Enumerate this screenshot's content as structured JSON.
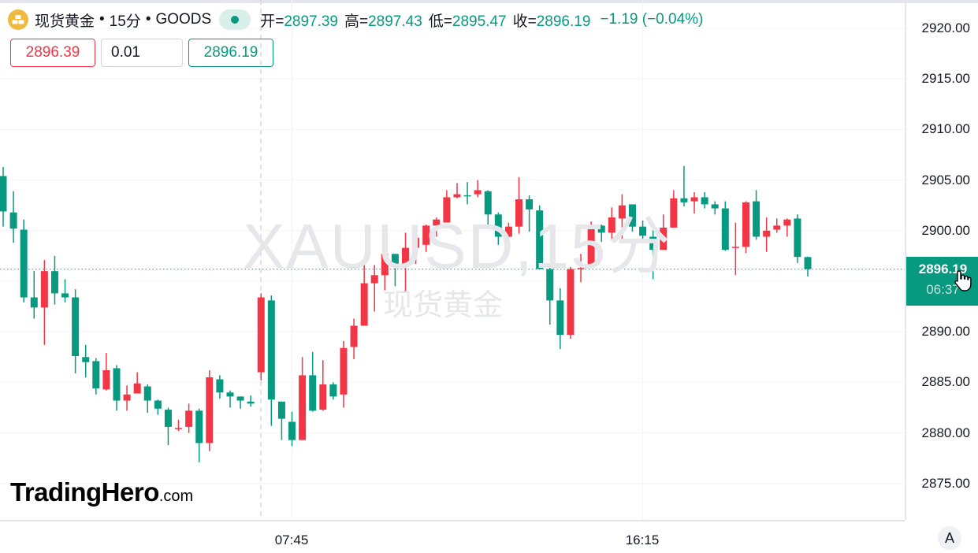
{
  "header": {
    "symbol_name": "现货黄金",
    "separator": "•",
    "interval": "15分",
    "exchange": "GOODS",
    "open_label": "开=",
    "open": "2897.39",
    "high_label": "高=",
    "high": "2897.43",
    "low_label": "低=",
    "low": "2895.47",
    "close_label": "收=",
    "close": "2896.19",
    "change": "−1.19 (−0.04%)",
    "status": "market-open-dot"
  },
  "order_panel": {
    "sell_price": "2896.39",
    "quantity": "0.01",
    "buy_price": "2896.19"
  },
  "watermark": {
    "symbol": "XAUUSD,15分",
    "name": "现货黄金"
  },
  "logo": {
    "brand": "TradingHero",
    "suffix": ".com"
  },
  "price_axis": {
    "current_price": "2896.19",
    "countdown": "06:37",
    "auto_scale": "A"
  },
  "time_axis": {
    "labels": [
      "07:45",
      "16:15"
    ]
  },
  "colors": {
    "up": "#f23645",
    "down": "#089981"
  },
  "icons": {
    "symbol": "gold-bars-icon",
    "cursor": "pointer-hand-icon"
  },
  "chart_data": {
    "type": "candlestick",
    "title": "现货黄金 • 15分 • GOODS",
    "interval_minutes": 15,
    "ylim": [
      2873,
      2922
    ],
    "yticks": [
      2875,
      2880,
      2885,
      2890,
      2895,
      2900,
      2905,
      2910,
      2915,
      2920
    ],
    "ytick_labels": [
      "2875.00",
      "2880.00",
      "2885.00",
      "2890.00",
      "2895.00",
      "2900.00",
      "2905.00",
      "2910.00",
      "2915.00",
      "2920.00"
    ],
    "xtick_labels": [
      {
        "candle_index": 28,
        "label": "07:45"
      },
      {
        "candle_index": 62,
        "label": "16:15"
      }
    ],
    "grid": true,
    "last_price_line": 2896.19,
    "ohlc": [
      [
        2905.4,
        2906.3,
        2900.4,
        2901.9
      ],
      [
        2901.8,
        2903.9,
        2898.8,
        2900.2
      ],
      [
        2900.1,
        2901.1,
        2892.9,
        2893.4
      ],
      [
        2893.4,
        2896.0,
        2891.3,
        2892.4
      ],
      [
        2892.4,
        2897.1,
        2888.7,
        2896.0
      ],
      [
        2896.0,
        2897.5,
        2892.7,
        2893.8
      ],
      [
        2893.8,
        2895.2,
        2892.9,
        2893.4
      ],
      [
        2893.4,
        2894.2,
        2885.9,
        2887.6
      ],
      [
        2887.5,
        2888.7,
        2885.5,
        2887.0
      ],
      [
        2887.1,
        2887.4,
        2883.8,
        2884.4
      ],
      [
        2884.3,
        2887.9,
        2884.2,
        2886.2
      ],
      [
        2886.4,
        2886.7,
        2882.2,
        2883.2
      ],
      [
        2883.2,
        2884.7,
        2882.2,
        2883.8
      ],
      [
        2883.9,
        2886.0,
        2883.9,
        2884.9
      ],
      [
        2884.6,
        2884.8,
        2882.0,
        2883.2
      ],
      [
        2883.2,
        2883.3,
        2881.8,
        2882.4
      ],
      [
        2882.3,
        2882.5,
        2878.8,
        2880.6
      ],
      [
        2880.4,
        2881.3,
        2880.2,
        2880.5
      ],
      [
        2880.6,
        2882.9,
        2880.0,
        2882.2
      ],
      [
        2882.2,
        2882.4,
        2877.1,
        2879.0
      ],
      [
        2879.0,
        2886.2,
        2878.2,
        2885.5
      ],
      [
        2885.3,
        2885.7,
        2883.4,
        2884.0
      ],
      [
        2884.0,
        2884.2,
        2882.5,
        2883.6
      ],
      [
        2883.6,
        2883.6,
        2882.4,
        2883.2
      ],
      [
        2883.1,
        2883.7,
        2882.6,
        2882.9
      ],
      [
        2886.0,
        2893.8,
        2885.2,
        2893.4
      ],
      [
        2893.1,
        2893.6,
        2880.7,
        2883.3
      ],
      [
        2883.1,
        2883.1,
        2879.3,
        2881.4
      ],
      [
        2881.1,
        2882.1,
        2878.7,
        2879.3
      ],
      [
        2879.3,
        2887.5,
        2879.3,
        2885.7
      ],
      [
        2885.7,
        2888.0,
        2882.1,
        2882.2
      ],
      [
        2882.3,
        2887.2,
        2882.2,
        2884.8
      ],
      [
        2884.8,
        2885.0,
        2883.3,
        2883.6
      ],
      [
        2883.8,
        2889.1,
        2882.5,
        2888.4
      ],
      [
        2888.5,
        2891.3,
        2887.3,
        2890.6
      ],
      [
        2890.6,
        2896.6,
        2890.6,
        2894.8
      ],
      [
        2894.8,
        2896.6,
        2892.0,
        2895.6
      ],
      [
        2895.6,
        2897.7,
        2894.1,
        2897.7
      ],
      [
        2897.7,
        2897.7,
        2894.5,
        2896.6
      ],
      [
        2896.6,
        2899.8,
        2894.0,
        2898.3
      ],
      [
        2898.3,
        2899.4,
        2896.7,
        2899.3
      ],
      [
        2898.6,
        2900.6,
        2897.9,
        2900.5
      ],
      [
        2900.5,
        2901.3,
        2899.4,
        2901.1
      ],
      [
        2900.8,
        2904.0,
        2900.8,
        2903.3
      ],
      [
        2903.3,
        2904.7,
        2903.2,
        2903.6
      ],
      [
        2903.5,
        2904.8,
        2902.6,
        2903.4
      ],
      [
        2903.6,
        2905.0,
        2903.3,
        2904.0
      ],
      [
        2903.9,
        2904.0,
        2900.4,
        2901.6
      ],
      [
        2901.6,
        2901.8,
        2898.6,
        2899.4
      ],
      [
        2899.4,
        2900.8,
        2899.2,
        2900.4
      ],
      [
        2900.4,
        2905.3,
        2899.7,
        2903.1
      ],
      [
        2903.1,
        2903.5,
        2899.9,
        2902.1
      ],
      [
        2902.0,
        2902.5,
        2896.2,
        2896.2
      ],
      [
        2896.2,
        2896.6,
        2890.7,
        2893.1
      ],
      [
        2893.1,
        2894.3,
        2888.3,
        2889.7
      ],
      [
        2889.7,
        2896.4,
        2889.3,
        2896.2
      ],
      [
        2896.2,
        2897.7,
        2894.9,
        2896.3
      ],
      [
        2896.6,
        2900.9,
        2896.6,
        2900.5
      ],
      [
        2900.5,
        2900.6,
        2898.9,
        2899.8
      ],
      [
        2899.8,
        2902.3,
        2899.0,
        2901.3
      ],
      [
        2901.2,
        2903.6,
        2899.2,
        2902.5
      ],
      [
        2902.6,
        2902.6,
        2899.9,
        2900.4
      ],
      [
        2900.4,
        2901.0,
        2899.0,
        2899.5
      ],
      [
        2899.4,
        2900.2,
        2895.2,
        2898.1
      ],
      [
        2898.1,
        2901.6,
        2898.1,
        2900.3
      ],
      [
        2900.3,
        2904.0,
        2900.3,
        2903.2
      ],
      [
        2903.2,
        2906.4,
        2902.4,
        2902.8
      ],
      [
        2902.9,
        2903.8,
        2901.7,
        2903.3
      ],
      [
        2903.3,
        2903.8,
        2902.2,
        2902.6
      ],
      [
        2902.6,
        2902.9,
        2901.6,
        2902.2
      ],
      [
        2902.2,
        2902.9,
        2898.0,
        2898.1
      ],
      [
        2898.3,
        2900.8,
        2895.6,
        2898.4
      ],
      [
        2898.4,
        2902.9,
        2897.8,
        2902.8
      ],
      [
        2902.9,
        2904.0,
        2899.1,
        2899.4
      ],
      [
        2899.4,
        2901.3,
        2897.9,
        2900.0
      ],
      [
        2900.1,
        2901.2,
        2899.8,
        2900.5
      ],
      [
        2900.5,
        2901.2,
        2899.4,
        2901.1
      ],
      [
        2901.2,
        2901.6,
        2896.8,
        2897.4
      ],
      [
        2897.39,
        2897.43,
        2895.47,
        2896.19
      ]
    ]
  }
}
